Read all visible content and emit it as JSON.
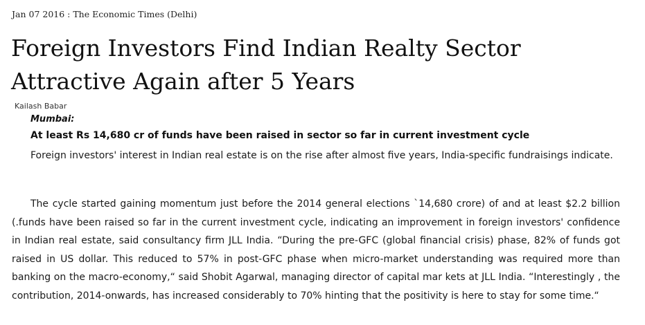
{
  "article": {
    "dateline": "Jan 07 2016 : The Economic Times (Delhi)",
    "headline": "Foreign Investors Find Indian Realty Sector Attractive Again after 5 Years",
    "byline": "Kailash Babar",
    "location": "Mumbai:",
    "strap": "At least Rs 14,680 cr of funds have been raised in sector so far in current investment cycle",
    "paragraphs": [
      "Foreign investors' interest in Indian real estate is on the rise after almost five years, India-specific fundraisings indicate.",
      "The cycle started gaining momentum just before the 2014 general elections `14,680 crore) of and at least $2.2 billion (.funds have been raised so far in the current investment cycle, indicating an improvement in foreign investors' confidence in Indian real estate, said consultancy firm JLL India. “During the pre-GFC (global financial crisis) phase, 82% of funds got raised in US dollar. This reduced to 57% in post-GFC phase when micro-market understanding was required more than banking on the macro-economy,“ said Shobit Agarwal, managing director of capital mar kets at JLL India. “Interestingly , the contribution, 2014-onwards, has increased considerably to 70%  hinting that the positivity is here to stay for some time.“"
    ]
  }
}
